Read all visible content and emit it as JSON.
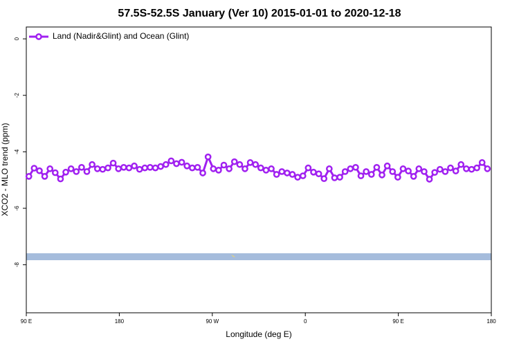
{
  "chart_data": {
    "type": "line",
    "title": "57.5S-52.5S January (Ver 10)   2015-01-01 to 2020-12-18",
    "xlabel": "Longitude (deg E)",
    "ylabel": "XCO2 - MLO trend (ppm)",
    "xlim": [
      90,
      540
    ],
    "xticks": [
      {
        "value": 90,
        "label": "90 E"
      },
      180,
      {
        "value": 270,
        "label": "90 W"
      },
      {
        "value": 360,
        "label": "0"
      },
      {
        "value": 450,
        "label": "90 E"
      },
      {
        "value": 540,
        "label": "180"
      }
    ],
    "ylim": [
      -9.7,
      0.42
    ],
    "yticks": [
      0,
      -2,
      -4,
      -6,
      -8
    ],
    "legend": "top-left",
    "x": [
      92.5,
      97.6,
      102.7,
      107.8,
      112.9,
      118,
      123.1,
      128.2,
      133.3,
      138.4,
      143.5,
      148.6,
      153.7,
      158.8,
      163.9,
      169,
      174.1,
      179.2,
      184.3,
      189.4,
      194.5,
      199.6,
      204.7,
      209.8,
      214.9,
      220,
      225.1,
      230.2,
      235.3,
      240.4,
      245.5,
      250.6,
      255.7,
      260.8,
      265.9,
      271,
      276.1,
      281.2,
      286.3,
      291.4,
      296.5,
      301.6,
      306.7,
      311.8,
      316.9,
      322,
      327.1,
      332.2,
      337.3,
      342.4,
      347.5,
      352.6,
      357.7,
      362.8,
      367.9,
      373,
      378.1,
      383.2,
      388.3,
      393.4,
      398.5,
      403.6,
      408.7,
      413.8,
      418.9,
      424,
      429.1,
      434.2,
      439.3,
      444.4,
      449.5,
      454.6,
      459.7,
      464.8,
      469.9,
      475,
      480.1,
      485.2,
      490.3,
      495.4,
      500.5,
      505.6,
      510.7,
      515.8,
      520.9,
      526,
      531.1,
      536.2
    ],
    "series": [
      {
        "name": "Land (Nadir&Glint) and Ocean (Glint)",
        "color": "#a020f0",
        "values": [
          -4.87,
          -4.58,
          -4.67,
          -4.87,
          -4.6,
          -4.74,
          -4.96,
          -4.72,
          -4.6,
          -4.7,
          -4.55,
          -4.7,
          -4.45,
          -4.6,
          -4.62,
          -4.57,
          -4.4,
          -4.6,
          -4.55,
          -4.57,
          -4.5,
          -4.62,
          -4.57,
          -4.55,
          -4.57,
          -4.52,
          -4.45,
          -4.32,
          -4.42,
          -4.37,
          -4.5,
          -4.57,
          -4.55,
          -4.75,
          -4.18,
          -4.6,
          -4.65,
          -4.47,
          -4.6,
          -4.35,
          -4.45,
          -4.6,
          -4.38,
          -4.45,
          -4.57,
          -4.65,
          -4.6,
          -4.8,
          -4.7,
          -4.75,
          -4.8,
          -4.9,
          -4.85,
          -4.57,
          -4.72,
          -4.78,
          -4.95,
          -4.6,
          -4.92,
          -4.9,
          -4.7,
          -4.6,
          -4.55,
          -4.85,
          -4.7,
          -4.8,
          -4.55,
          -4.82,
          -4.5,
          -4.7,
          -4.9,
          -4.6,
          -4.68,
          -4.87,
          -4.6,
          -4.7,
          -4.97,
          -4.73,
          -4.62,
          -4.7,
          -4.57,
          -4.68,
          -4.45,
          -4.6,
          -4.62,
          -4.57,
          -4.38,
          -4.6
        ]
      }
    ]
  }
}
